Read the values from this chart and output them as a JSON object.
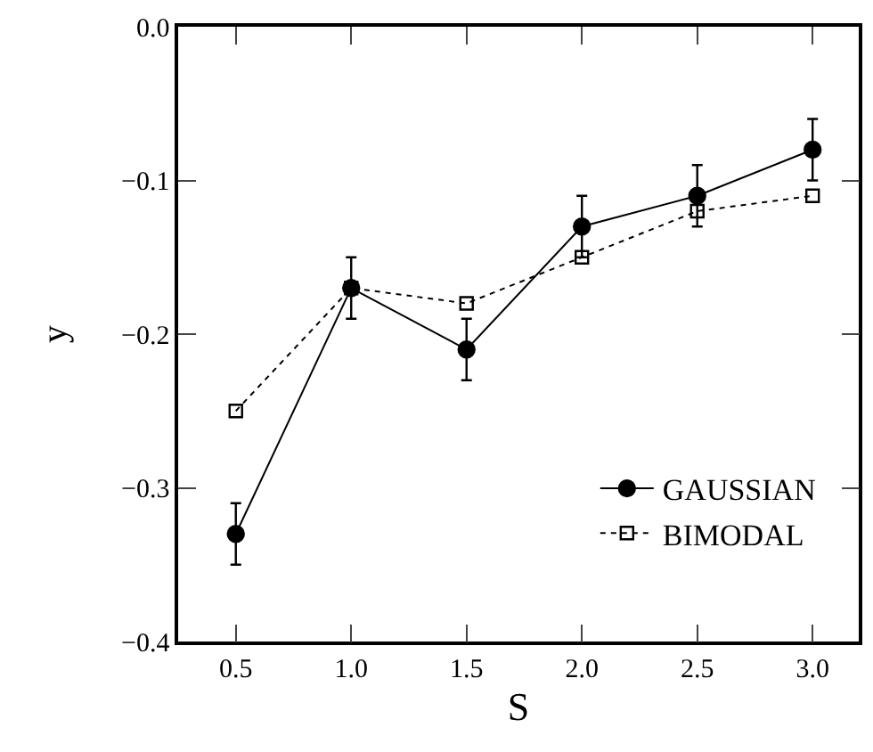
{
  "chart_data": {
    "type": "line",
    "xlabel": "S",
    "ylabel": "y",
    "x": [
      0.5,
      1.0,
      1.5,
      2.0,
      2.5,
      3.0
    ],
    "series": [
      {
        "name": "GAUSSIAN",
        "color": "#000000",
        "marker": "circle",
        "line_style": "solid",
        "values": [
          -0.33,
          -0.17,
          -0.21,
          -0.13,
          -0.11,
          -0.08
        ],
        "errors": [
          0.02,
          0.02,
          0.02,
          0.02,
          0.02,
          0.02
        ]
      },
      {
        "name": "BIMODAL",
        "color": "#000000",
        "marker": "square",
        "line_style": "dotted",
        "values": [
          -0.25,
          -0.17,
          -0.18,
          -0.15,
          -0.12,
          -0.11
        ]
      }
    ],
    "xlim": [
      0.25,
      3.2
    ],
    "xticks": [
      {
        "value": 0.5,
        "label": "0.5"
      },
      {
        "value": 1.0,
        "label": "1.0"
      },
      {
        "value": 1.5,
        "label": "1.5"
      },
      {
        "value": 2.0,
        "label": "2.0"
      },
      {
        "value": 2.5,
        "label": "2.5"
      },
      {
        "value": 3.0,
        "label": "3.0"
      }
    ],
    "ylim": [
      -0.4,
      0
    ],
    "yticks": [
      {
        "value": -0.4,
        "label": "−0.4"
      },
      {
        "value": -0.3,
        "label": "−0.3"
      },
      {
        "value": -0.2,
        "label": "−0.2"
      },
      {
        "value": -0.1,
        "label": "−0.1"
      },
      {
        "value": 0,
        "label": "0.0"
      }
    ],
    "grid": false,
    "legend": "bottom right"
  }
}
